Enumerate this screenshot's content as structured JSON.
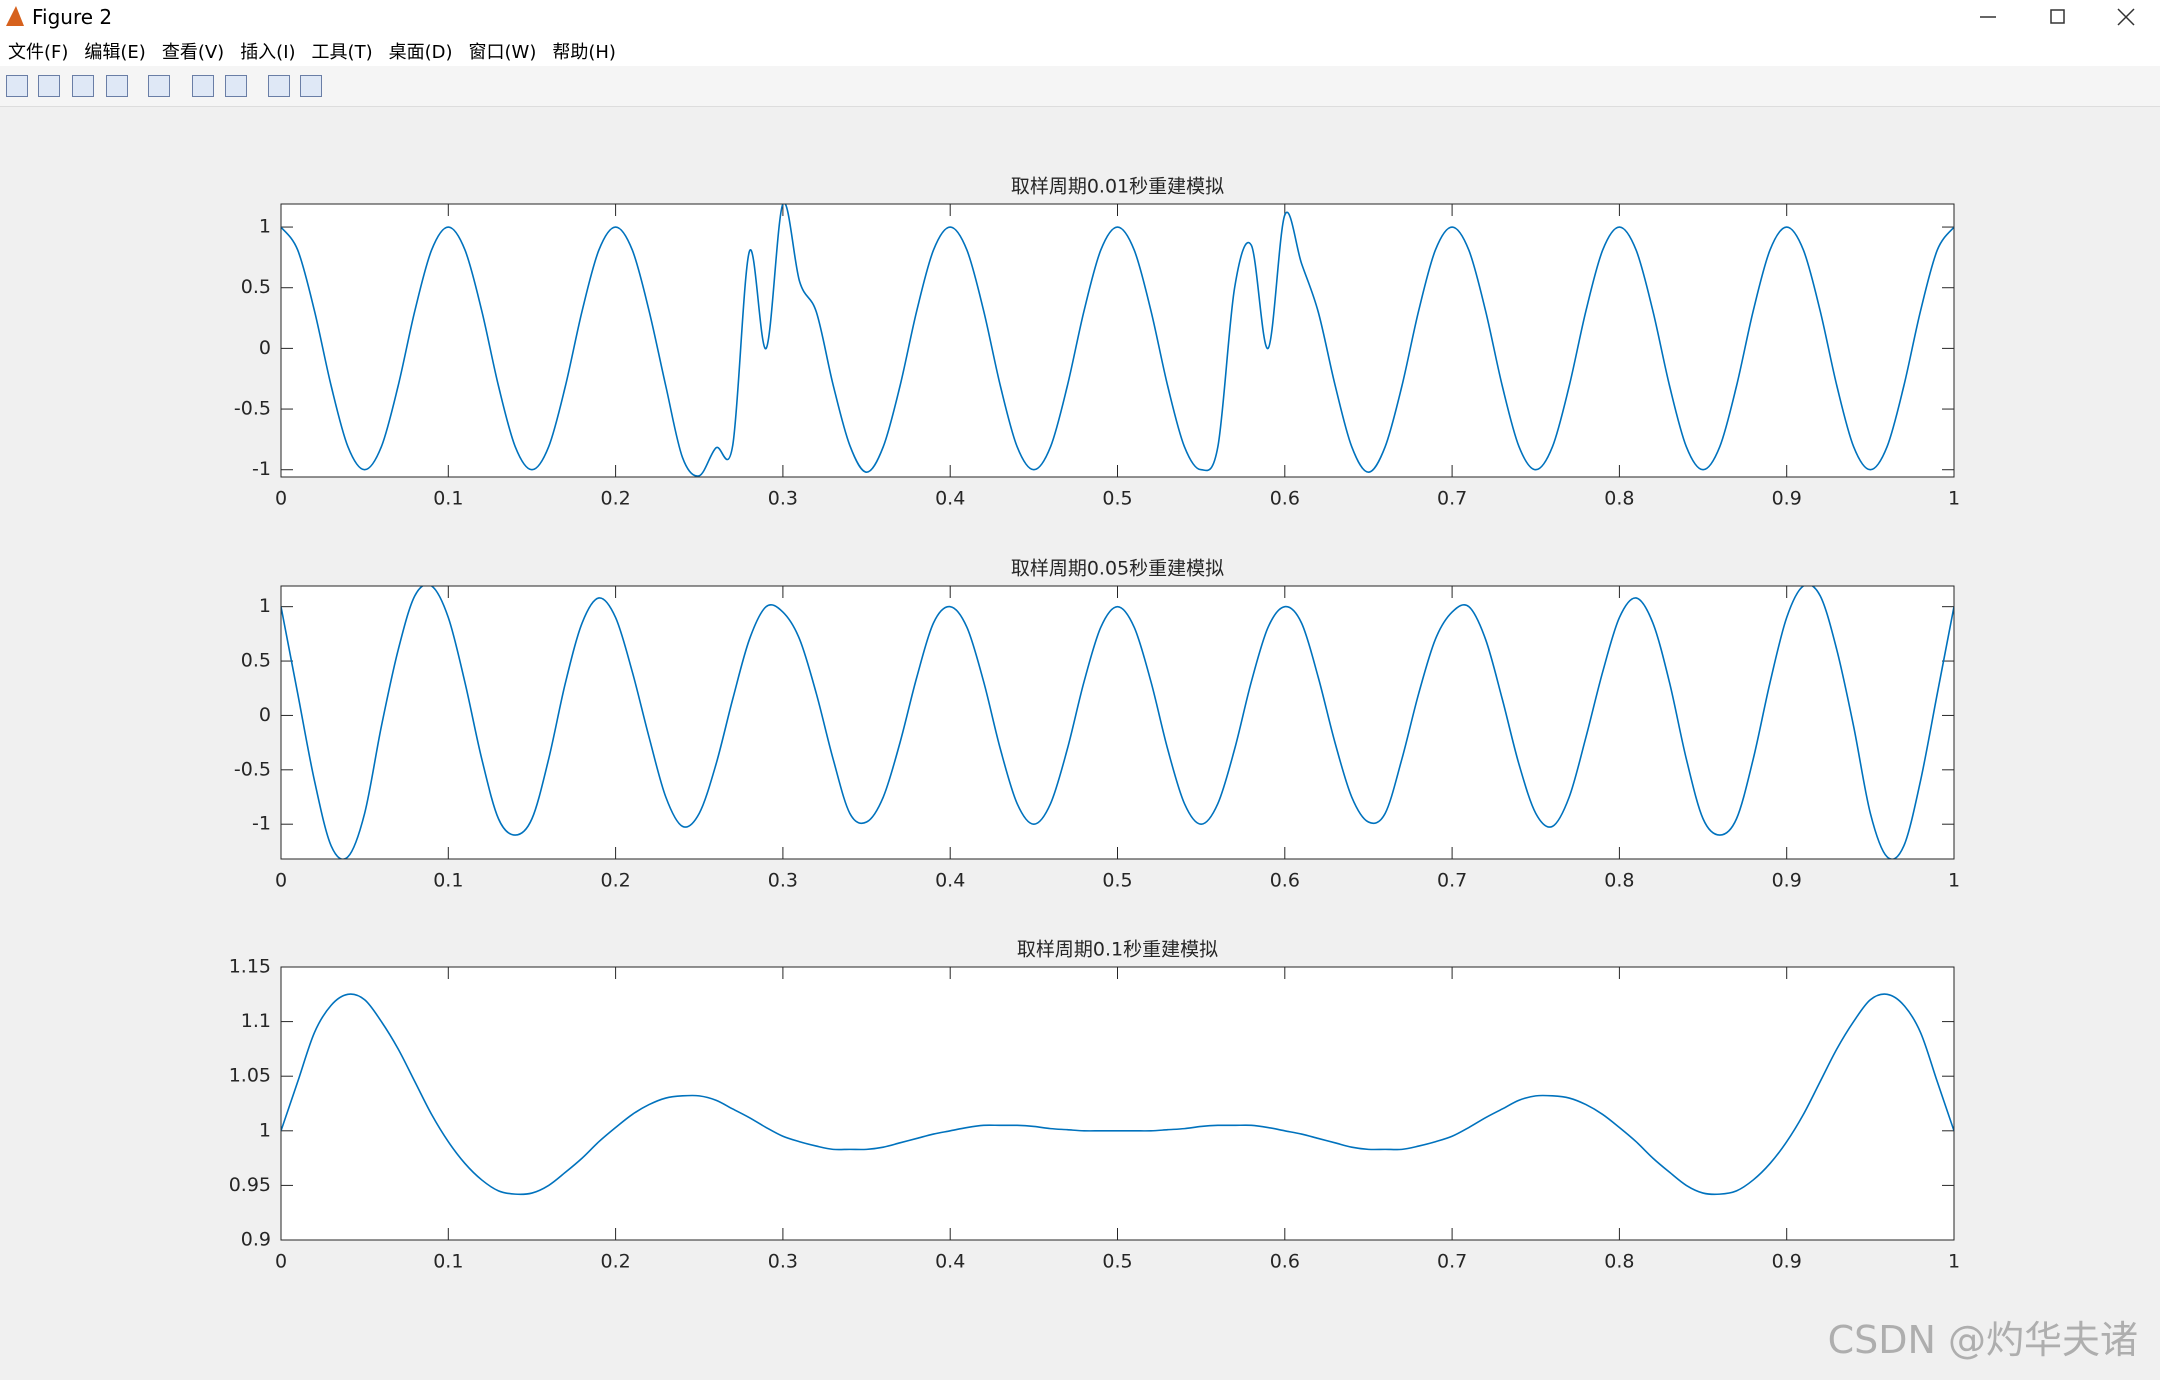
{
  "window": {
    "title": "Figure 2",
    "menu": [
      "文件(F)",
      "编辑(E)",
      "查看(V)",
      "插入(I)",
      "工具(T)",
      "桌面(D)",
      "窗口(W)",
      "帮助(H)"
    ],
    "watermark": "CSDN @灼华夫诸"
  },
  "chart_data": [
    {
      "type": "line",
      "title": "取样周期0.01秒重建模拟",
      "x": [
        0,
        0.01,
        0.02,
        0.03,
        0.04,
        0.05,
        0.06,
        0.07,
        0.08,
        0.09,
        0.1,
        0.11,
        0.12,
        0.13,
        0.14,
        0.15,
        0.16,
        0.17,
        0.18,
        0.19,
        0.2,
        0.21,
        0.22,
        0.23,
        0.24,
        0.25,
        0.26,
        0.27,
        0.28,
        0.29,
        0.3,
        0.31,
        0.32,
        0.33,
        0.34,
        0.35,
        0.36,
        0.37,
        0.38,
        0.39,
        0.4,
        0.41,
        0.42,
        0.43,
        0.44,
        0.45,
        0.46,
        0.47,
        0.48,
        0.49,
        0.5,
        0.51,
        0.52,
        0.53,
        0.54,
        0.55,
        0.56,
        0.57,
        0.58,
        0.59,
        0.6,
        0.61,
        0.62,
        0.63,
        0.64,
        0.65,
        0.66,
        0.67,
        0.68,
        0.69,
        0.7,
        0.71,
        0.72,
        0.73,
        0.74,
        0.75,
        0.76,
        0.77,
        0.78,
        0.79,
        0.8,
        0.81,
        0.82,
        0.83,
        0.84,
        0.85,
        0.86,
        0.87,
        0.88,
        0.89,
        0.9,
        0.91,
        0.92,
        0.93,
        0.94,
        0.95,
        0.96,
        0.97,
        0.98,
        0.99,
        1
      ],
      "series": [
        {
          "color": "#0072BD",
          "values": [
            1,
            0.81,
            0.31,
            -0.31,
            -0.81,
            -1,
            -0.81,
            -0.31,
            0.31,
            0.81,
            1,
            0.81,
            0.31,
            -0.31,
            -0.81,
            -1,
            -0.81,
            -0.31,
            0.31,
            0.81,
            1,
            0.81,
            0.31,
            -0.31,
            -0.9,
            -1.05,
            -0.82,
            -0.8,
            0.8,
            0,
            1.19,
            0.55,
            0.3,
            -0.3,
            -0.8,
            -1.02,
            -0.81,
            -0.31,
            0.31,
            0.81,
            1,
            0.81,
            0.31,
            -0.31,
            -0.81,
            -1,
            -0.81,
            -0.31,
            0.31,
            0.81,
            1,
            0.81,
            0.31,
            -0.31,
            -0.81,
            -1,
            -0.81,
            0.5,
            0.85,
            0,
            1.1,
            0.7,
            0.3,
            -0.3,
            -0.81,
            -1.02,
            -0.81,
            -0.31,
            0.31,
            0.81,
            1,
            0.81,
            0.31,
            -0.31,
            -0.81,
            -1,
            -0.81,
            -0.31,
            0.31,
            0.81,
            1,
            0.81,
            0.31,
            -0.31,
            -0.81,
            -1,
            -0.81,
            -0.31,
            0.31,
            0.81,
            1,
            0.81,
            0.31,
            -0.31,
            -0.81,
            -1,
            -0.81,
            -0.31,
            0.31,
            0.81,
            1
          ]
        }
      ],
      "xlim": [
        0,
        1
      ],
      "xticks": [
        0,
        0.1,
        0.2,
        0.3,
        0.4,
        0.5,
        0.6,
        0.7,
        0.8,
        0.9,
        1
      ],
      "ylim": [
        -1.06,
        1.19
      ],
      "yticks": [
        -1,
        -0.5,
        0,
        0.5,
        1
      ]
    },
    {
      "type": "line",
      "title": "取样周期0.05秒重建模拟",
      "x": [
        0,
        0.01,
        0.02,
        0.03,
        0.04,
        0.05,
        0.06,
        0.07,
        0.08,
        0.09,
        0.1,
        0.11,
        0.12,
        0.13,
        0.14,
        0.15,
        0.16,
        0.17,
        0.18,
        0.19,
        0.2,
        0.21,
        0.22,
        0.23,
        0.24,
        0.25,
        0.26,
        0.27,
        0.28,
        0.29,
        0.3,
        0.31,
        0.32,
        0.33,
        0.34,
        0.35,
        0.36,
        0.37,
        0.38,
        0.39,
        0.4,
        0.41,
        0.42,
        0.43,
        0.44,
        0.45,
        0.46,
        0.47,
        0.48,
        0.49,
        0.5,
        0.51,
        0.52,
        0.53,
        0.54,
        0.55,
        0.56,
        0.57,
        0.58,
        0.59,
        0.6,
        0.61,
        0.62,
        0.63,
        0.64,
        0.65,
        0.66,
        0.67,
        0.68,
        0.69,
        0.7,
        0.71,
        0.72,
        0.73,
        0.74,
        0.75,
        0.76,
        0.77,
        0.78,
        0.79,
        0.8,
        0.81,
        0.82,
        0.83,
        0.84,
        0.85,
        0.86,
        0.87,
        0.88,
        0.89,
        0.9,
        0.91,
        0.92,
        0.93,
        0.94,
        0.95,
        0.96,
        0.97,
        0.98,
        0.99,
        1
      ],
      "series": [
        {
          "color": "#0072BD",
          "values": [
            1,
            0.2,
            -0.6,
            -1.2,
            -1.3,
            -0.9,
            -0.1,
            0.6,
            1.1,
            1.19,
            0.9,
            0.3,
            -0.4,
            -0.95,
            -1.1,
            -0.95,
            -0.4,
            0.3,
            0.85,
            1.08,
            0.9,
            0.4,
            -0.2,
            -0.75,
            -1.02,
            -0.9,
            -0.45,
            0.15,
            0.7,
            1,
            0.95,
            0.7,
            0.2,
            -0.4,
            -0.9,
            -0.98,
            -0.75,
            -0.25,
            0.35,
            0.85,
            1,
            0.81,
            0.31,
            -0.31,
            -0.81,
            -1,
            -0.81,
            -0.31,
            0.31,
            0.81,
            1,
            0.81,
            0.31,
            -0.31,
            -0.81,
            -1,
            -0.81,
            -0.31,
            0.31,
            0.81,
            1,
            0.85,
            0.35,
            -0.25,
            -0.75,
            -0.98,
            -0.9,
            -0.4,
            0.2,
            0.7,
            0.95,
            1,
            0.7,
            0.15,
            -0.45,
            -0.9,
            -1.02,
            -0.75,
            -0.2,
            0.4,
            0.9,
            1.08,
            0.85,
            0.3,
            -0.4,
            -0.95,
            -1.1,
            -0.95,
            -0.4,
            0.3,
            0.9,
            1.19,
            1.1,
            0.6,
            -0.1,
            -0.9,
            -1.3,
            -1.2,
            -0.6,
            0.2,
            1
          ]
        }
      ],
      "xlim": [
        0,
        1
      ],
      "xticks": [
        0,
        0.1,
        0.2,
        0.3,
        0.4,
        0.5,
        0.6,
        0.7,
        0.8,
        0.9,
        1
      ],
      "ylim": [
        -1.32,
        1.19
      ],
      "yticks": [
        -1,
        -0.5,
        0,
        0.5,
        1
      ]
    },
    {
      "type": "line",
      "title": "取样周期0.1秒重建模拟",
      "x": [
        0,
        0.01,
        0.02,
        0.03,
        0.04,
        0.05,
        0.06,
        0.07,
        0.08,
        0.09,
        0.1,
        0.11,
        0.12,
        0.13,
        0.14,
        0.15,
        0.16,
        0.17,
        0.18,
        0.19,
        0.2,
        0.21,
        0.22,
        0.23,
        0.24,
        0.25,
        0.26,
        0.27,
        0.28,
        0.29,
        0.3,
        0.31,
        0.32,
        0.33,
        0.34,
        0.35,
        0.36,
        0.37,
        0.38,
        0.39,
        0.4,
        0.41,
        0.42,
        0.43,
        0.44,
        0.45,
        0.46,
        0.47,
        0.48,
        0.49,
        0.5,
        0.51,
        0.52,
        0.53,
        0.54,
        0.55,
        0.56,
        0.57,
        0.58,
        0.59,
        0.6,
        0.61,
        0.62,
        0.63,
        0.64,
        0.65,
        0.66,
        0.67,
        0.68,
        0.69,
        0.7,
        0.71,
        0.72,
        0.73,
        0.74,
        0.75,
        0.76,
        0.77,
        0.78,
        0.79,
        0.8,
        0.81,
        0.82,
        0.83,
        0.84,
        0.85,
        0.86,
        0.87,
        0.88,
        0.89,
        0.9,
        0.91,
        0.92,
        0.93,
        0.94,
        0.95,
        0.96,
        0.97,
        0.98,
        0.99,
        1
      ],
      "series": [
        {
          "color": "#0072BD",
          "values": [
            1,
            1.045,
            1.09,
            1.115,
            1.125,
            1.12,
            1.1,
            1.075,
            1.045,
            1.015,
            0.99,
            0.97,
            0.955,
            0.945,
            0.942,
            0.943,
            0.95,
            0.962,
            0.975,
            0.99,
            1.003,
            1.015,
            1.024,
            1.03,
            1.032,
            1.032,
            1.028,
            1.02,
            1.012,
            1.003,
            0.995,
            0.99,
            0.986,
            0.983,
            0.983,
            0.983,
            0.985,
            0.989,
            0.993,
            0.997,
            1,
            1.003,
            1.005,
            1.005,
            1.005,
            1.004,
            1.002,
            1.001,
            1,
            1,
            1,
            1,
            1,
            1.001,
            1.002,
            1.004,
            1.005,
            1.005,
            1.005,
            1.003,
            1,
            0.997,
            0.993,
            0.989,
            0.985,
            0.983,
            0.983,
            0.983,
            0.986,
            0.99,
            0.995,
            1.003,
            1.012,
            1.02,
            1.028,
            1.032,
            1.032,
            1.03,
            1.024,
            1.015,
            1.003,
            0.99,
            0.975,
            0.962,
            0.95,
            0.943,
            0.942,
            0.945,
            0.955,
            0.97,
            0.99,
            1.015,
            1.045,
            1.075,
            1.1,
            1.12,
            1.125,
            1.115,
            1.09,
            1.045,
            1
          ]
        }
      ],
      "xlim": [
        0,
        1
      ],
      "xticks": [
        0,
        0.1,
        0.2,
        0.3,
        0.4,
        0.5,
        0.6,
        0.7,
        0.8,
        0.9,
        1
      ],
      "ylim": [
        0.9,
        1.15
      ],
      "yticks": [
        0.9,
        0.95,
        1,
        1.05,
        1.1,
        1.15
      ]
    }
  ]
}
